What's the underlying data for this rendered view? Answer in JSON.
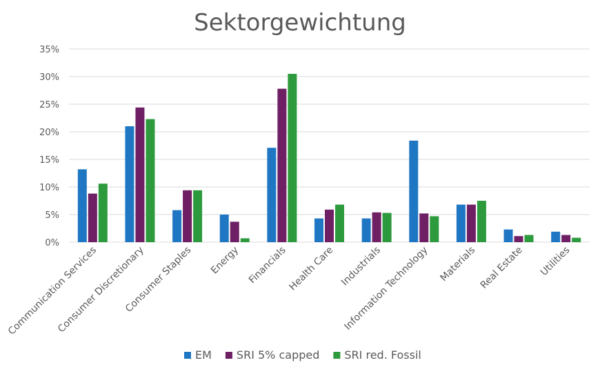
{
  "chart_data": {
    "type": "bar",
    "title": "Sektorgewichtung",
    "xlabel": "",
    "ylabel": "",
    "ylim": [
      0,
      35
    ],
    "yticks": [
      0,
      5,
      10,
      15,
      20,
      25,
      30,
      35
    ],
    "ytick_labels": [
      "0%",
      "5%",
      "10%",
      "15%",
      "20%",
      "25%",
      "30%",
      "35%"
    ],
    "grid": true,
    "legend_position": "bottom",
    "categories": [
      "Communication Services",
      "Consumer Discretionary",
      "Consumer Staples",
      "Energy",
      "Financials",
      "Health Care",
      "Industrials",
      "Information Technology",
      "Materials",
      "Real Estate",
      "Utilities"
    ],
    "series": [
      {
        "name": "EM",
        "color": "#1f77c4",
        "values": [
          13.2,
          21.0,
          5.8,
          5.0,
          17.1,
          4.3,
          4.3,
          18.4,
          6.8,
          2.3,
          1.9
        ]
      },
      {
        "name": "SRI 5% capped",
        "color": "#6f1f63",
        "values": [
          8.8,
          24.4,
          9.4,
          3.7,
          27.8,
          5.9,
          5.4,
          5.2,
          6.8,
          1.1,
          1.3
        ]
      },
      {
        "name": "SRI red. Fossil",
        "color": "#2e9a3e",
        "values": [
          10.6,
          22.3,
          9.4,
          0.7,
          30.5,
          6.8,
          5.3,
          4.7,
          7.5,
          1.3,
          0.8
        ]
      }
    ]
  }
}
